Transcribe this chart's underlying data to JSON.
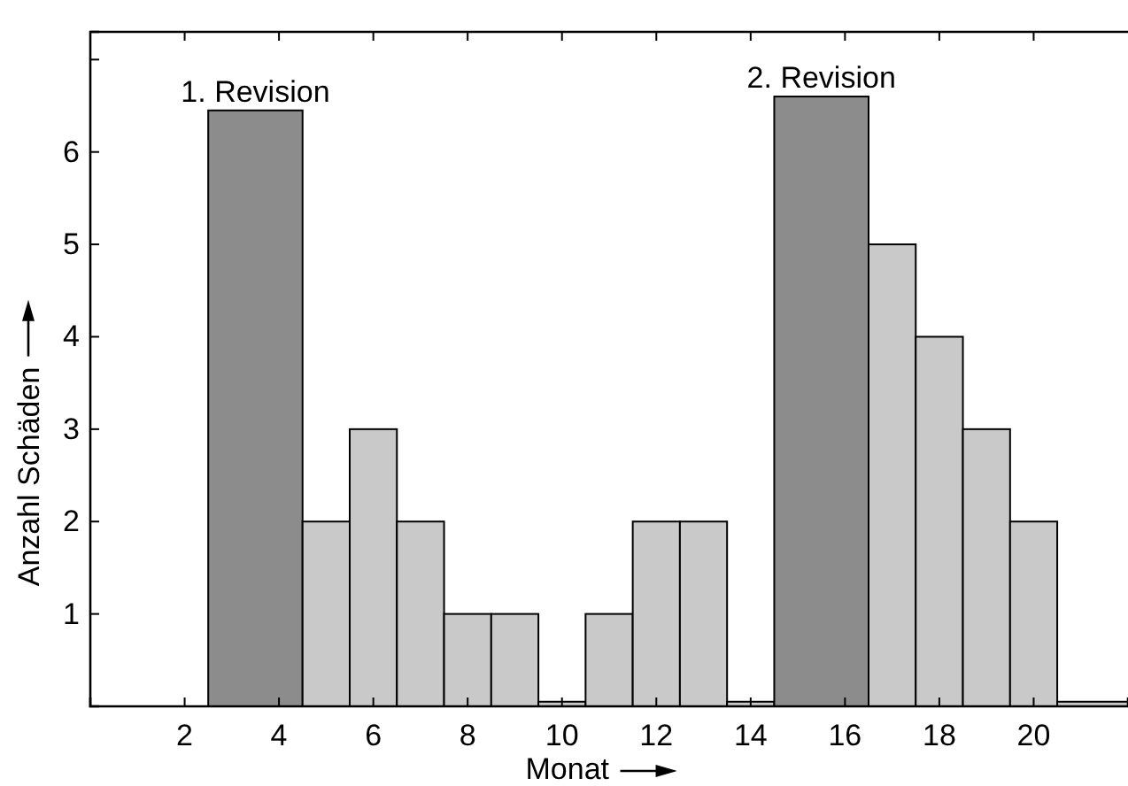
{
  "chart_data": {
    "type": "histogram",
    "xlabel": "Monat",
    "ylabel": "Anzahl Schäden",
    "bins": [
      2.5,
      4.5,
      5.5,
      6.5,
      7.5,
      8.5,
      9.5,
      10.5,
      11.5,
      12.5,
      13.5,
      14.5,
      16.5,
      17.5,
      18.5,
      19.5,
      20.5,
      22
    ],
    "values": [
      6.45,
      2,
      3,
      2,
      1,
      1,
      0.05,
      1,
      2,
      2,
      0.05,
      6.6,
      5,
      4,
      3,
      2,
      0.05
    ],
    "colors": [
      "#8c8c8c",
      "#c9c9c9",
      "#c9c9c9",
      "#c9c9c9",
      "#c9c9c9",
      "#c9c9c9",
      "#c9c9c9",
      "#c9c9c9",
      "#c9c9c9",
      "#c9c9c9",
      "#c9c9c9",
      "#8c8c8c",
      "#c9c9c9",
      "#c9c9c9",
      "#c9c9c9",
      "#c9c9c9",
      "#c9c9c9"
    ],
    "xlim": [
      0,
      22
    ],
    "ylim": [
      0,
      7.3
    ],
    "xticks": [
      2,
      4,
      6,
      8,
      10,
      12,
      14,
      16,
      18,
      20
    ],
    "yticks": [
      1,
      2,
      3,
      4,
      5,
      6,
      {
        "value": 7,
        "label": null
      }
    ],
    "annotations": [
      {
        "text": "1. Revision",
        "x": 3.5,
        "y": 6.45
      },
      {
        "text": "2. Revision",
        "x": 15.5,
        "y": 6.6
      }
    ],
    "grid": false
  }
}
